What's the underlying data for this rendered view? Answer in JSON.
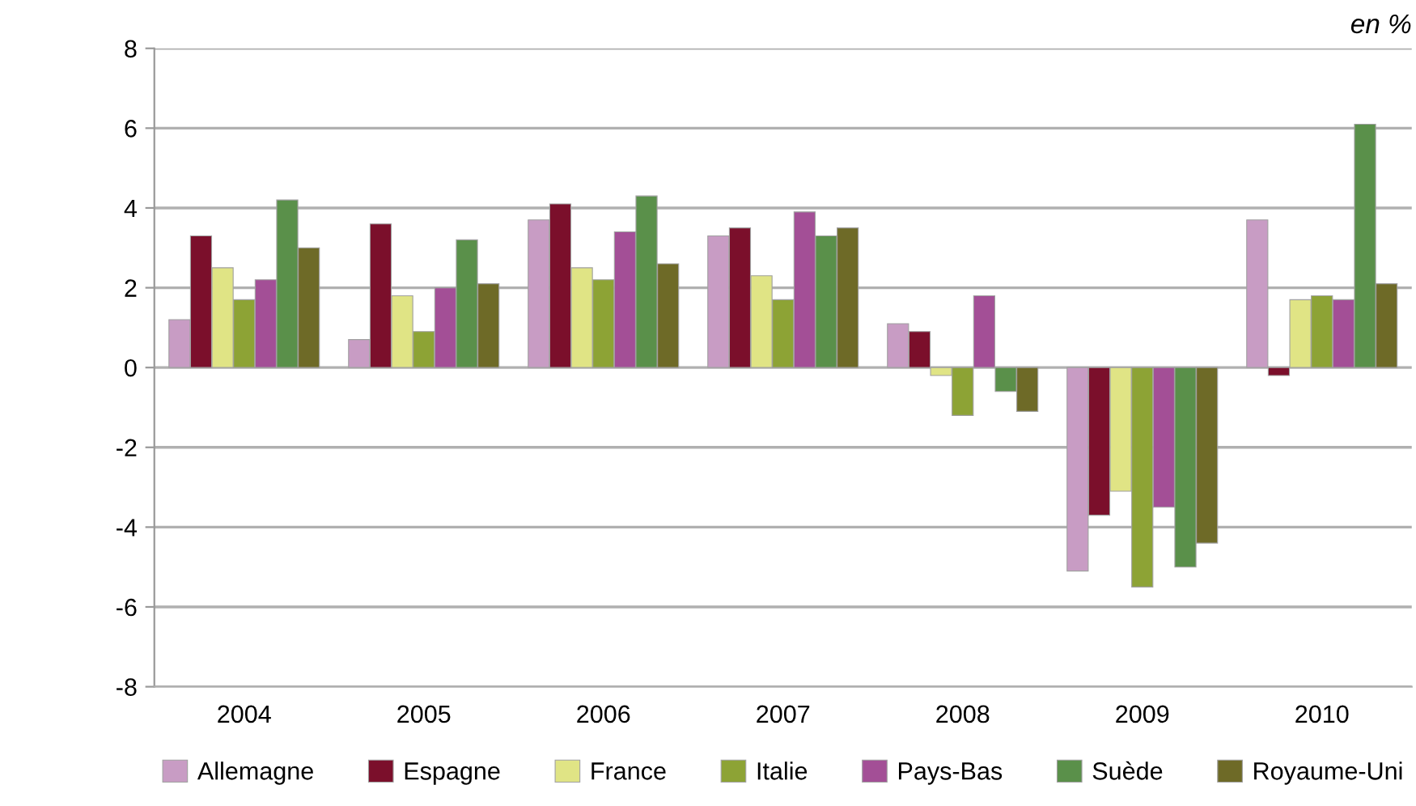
{
  "chart_data": {
    "type": "bar",
    "ylabel": "en %",
    "categories": [
      "2004",
      "2005",
      "2006",
      "2007",
      "2008",
      "2009",
      "2010"
    ],
    "series": [
      {
        "name": "Allemagne",
        "color": "#c89cc4",
        "values": [
          1.2,
          0.7,
          3.7,
          3.3,
          1.1,
          -5.1,
          3.7
        ]
      },
      {
        "name": "Espagne",
        "color": "#7b0f2b",
        "values": [
          3.3,
          3.6,
          4.1,
          3.5,
          0.9,
          -3.7,
          -0.2
        ]
      },
      {
        "name": "France",
        "color": "#e0e485",
        "values": [
          2.5,
          1.8,
          2.5,
          2.3,
          -0.2,
          -3.1,
          1.7
        ]
      },
      {
        "name": "Italie",
        "color": "#8da335",
        "values": [
          1.7,
          0.9,
          2.2,
          1.7,
          -1.2,
          -5.5,
          1.8
        ]
      },
      {
        "name": "Pays-Bas",
        "color": "#a34f96",
        "values": [
          2.2,
          2.0,
          3.4,
          3.9,
          1.8,
          -3.5,
          1.7
        ]
      },
      {
        "name": "Suède",
        "color": "#5a904a",
        "values": [
          4.2,
          3.2,
          4.3,
          3.3,
          -0.6,
          -5.0,
          6.1
        ]
      },
      {
        "name": "Royaume-Uni",
        "color": "#6e6a27",
        "values": [
          3.0,
          2.1,
          2.6,
          3.5,
          -1.1,
          -4.4,
          2.1
        ]
      }
    ],
    "ylim": [
      -8,
      8
    ],
    "yticks": [
      -8,
      -6,
      -4,
      -2,
      0,
      2,
      4,
      6,
      8
    ],
    "grid": "y",
    "legend": "bottom"
  }
}
